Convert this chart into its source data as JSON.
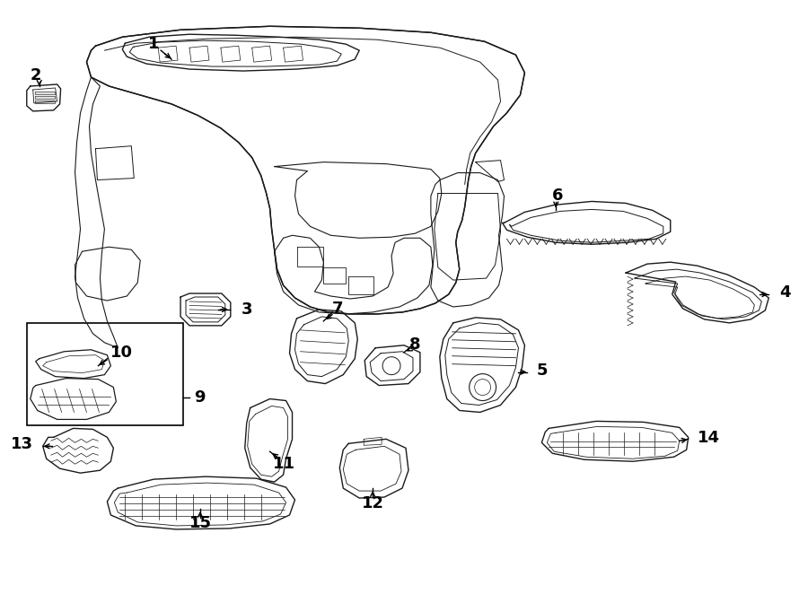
{
  "bg_color": "#ffffff",
  "line_color": "#1a1a1a",
  "figsize": [
    9.0,
    6.62
  ],
  "dpi": 100,
  "lw_main": 1.0,
  "lw_detail": 0.6
}
